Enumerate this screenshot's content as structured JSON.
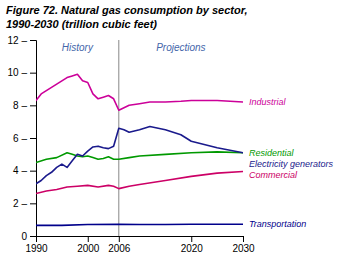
{
  "chart_data": {
    "type": "line",
    "title": "Figure 72. Natural gas consumption by sector,",
    "subtitle": "1990-2030 (trillion cubic feet)",
    "annotations": [
      "History",
      "Projections"
    ],
    "split_x": 2006,
    "xlim": [
      1990,
      2030
    ],
    "ylim": [
      0,
      12
    ],
    "xticks": [
      1990,
      2000,
      2006,
      2020,
      2030
    ],
    "yticks": [
      0,
      {
        "value": 2,
        "label": "2 –"
      },
      {
        "value": 4,
        "label": "4 –"
      },
      {
        "value": 6,
        "label": "6 –"
      },
      {
        "value": 8,
        "label": "8 –"
      },
      {
        "value": 10,
        "label": "10 –"
      },
      {
        "value": 12,
        "label": "12 –"
      }
    ],
    "series": [
      {
        "name": "Industrial",
        "color": "#cc0099",
        "x": [
          1990,
          1991,
          1992,
          1993,
          1994,
          1995,
          1996,
          1997,
          1998,
          1999,
          2000,
          2001,
          2002,
          2003,
          2004,
          2005,
          2006,
          2008,
          2010,
          2012,
          2015,
          2018,
          2020,
          2025,
          2030
        ],
        "values": [
          8.3,
          8.7,
          8.9,
          9.1,
          9.3,
          9.5,
          9.7,
          9.8,
          9.9,
          9.5,
          9.4,
          8.7,
          8.4,
          8.5,
          8.6,
          8.4,
          7.7,
          8.0,
          8.1,
          8.2,
          8.2,
          8.25,
          8.3,
          8.3,
          8.2
        ]
      },
      {
        "name": "Residential",
        "color": "#009900",
        "x": [
          1990,
          1992,
          1994,
          1996,
          1997,
          1998,
          1999,
          2000,
          2001,
          2002,
          2003,
          2004,
          2005,
          2006,
          2008,
          2010,
          2015,
          2020,
          2025,
          2030
        ],
        "values": [
          4.5,
          4.7,
          4.8,
          5.1,
          5.0,
          4.9,
          4.85,
          4.9,
          4.8,
          4.7,
          4.75,
          4.85,
          4.7,
          4.7,
          4.8,
          4.9,
          5.0,
          5.1,
          5.15,
          5.1
        ]
      },
      {
        "name": "Electricity generators",
        "color": "#1a1a8c",
        "x": [
          1990,
          1991,
          1992,
          1993,
          1994,
          1995,
          1996,
          1997,
          1998,
          1999,
          2000,
          2001,
          2002,
          2003,
          2004,
          2005,
          2006,
          2007,
          2008,
          2010,
          2012,
          2015,
          2018,
          2020,
          2025,
          2030
        ],
        "values": [
          3.2,
          3.4,
          3.7,
          3.9,
          4.2,
          4.4,
          4.2,
          4.6,
          5.0,
          4.9,
          5.2,
          5.45,
          5.5,
          5.4,
          5.35,
          5.5,
          6.6,
          6.5,
          6.35,
          6.5,
          6.7,
          6.5,
          6.2,
          5.8,
          5.4,
          5.1
        ]
      },
      {
        "name": "Commercial",
        "color": "#cc0066",
        "x": [
          1990,
          1992,
          1994,
          1996,
          1998,
          2000,
          2002,
          2004,
          2005,
          2006,
          2008,
          2010,
          2015,
          2020,
          2025,
          2030
        ],
        "values": [
          2.6,
          2.75,
          2.85,
          3.0,
          3.05,
          3.1,
          3.0,
          3.1,
          3.05,
          2.9,
          3.05,
          3.15,
          3.4,
          3.65,
          3.85,
          3.95
        ]
      },
      {
        "name": "Transportation",
        "color": "#00008b",
        "x": [
          1990,
          1995,
          2000,
          2006,
          2010,
          2015,
          2020,
          2025,
          2030
        ],
        "values": [
          0.65,
          0.65,
          0.7,
          0.72,
          0.7,
          0.7,
          0.72,
          0.72,
          0.72
        ]
      }
    ]
  }
}
